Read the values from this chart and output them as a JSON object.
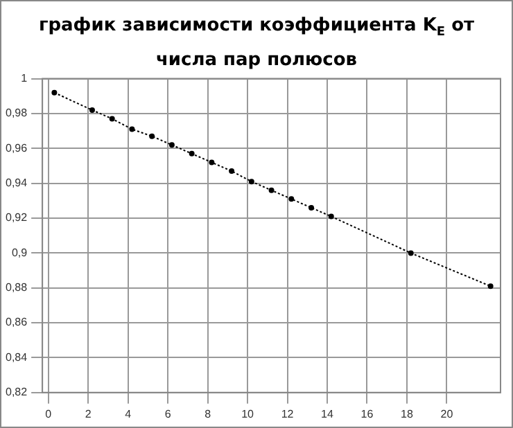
{
  "chart_data": {
    "type": "line",
    "title": [
      "график зависимости коэффициента K$_{E}$ от",
      "числа пар полюсов"
    ],
    "x": [
      0.3,
      2.2,
      3.2,
      4.2,
      5.2,
      6.2,
      7.2,
      8.2,
      9.2,
      10.2,
      11.2,
      12.2,
      13.2,
      14.2,
      18.2,
      22.2
    ],
    "series": [
      {
        "color": "#000000",
        "values": [
          0.992,
          0.982,
          0.977,
          0.971,
          0.967,
          0.962,
          0.957,
          0.952,
          0.947,
          0.941,
          0.936,
          0.931,
          0.926,
          0.921,
          0.9,
          0.881
        ]
      }
    ],
    "xlim": [
      -0.3,
      22.7
    ],
    "xticks": [
      0,
      2,
      4,
      6,
      8,
      10,
      12,
      14,
      16,
      18,
      20
    ],
    "ylim": [
      0.82,
      1
    ],
    "yticks": [
      {
        "value": 0.82,
        "label": "0,82"
      },
      {
        "value": 0.84,
        "label": "0,84"
      },
      {
        "value": 0.86,
        "label": "0,86"
      },
      {
        "value": 0.88,
        "label": "0,88"
      },
      {
        "value": 0.9,
        "label": "0,9"
      },
      {
        "value": 0.92,
        "label": "0,92"
      },
      {
        "value": 0.94,
        "label": "0,94"
      },
      {
        "value": 0.96,
        "label": "0,96"
      },
      {
        "value": 0.98,
        "label": "0,98"
      },
      {
        "value": 1,
        "label": "1"
      }
    ],
    "grid": true,
    "legend": false,
    "marker": "circle",
    "line_style": "dotted"
  }
}
